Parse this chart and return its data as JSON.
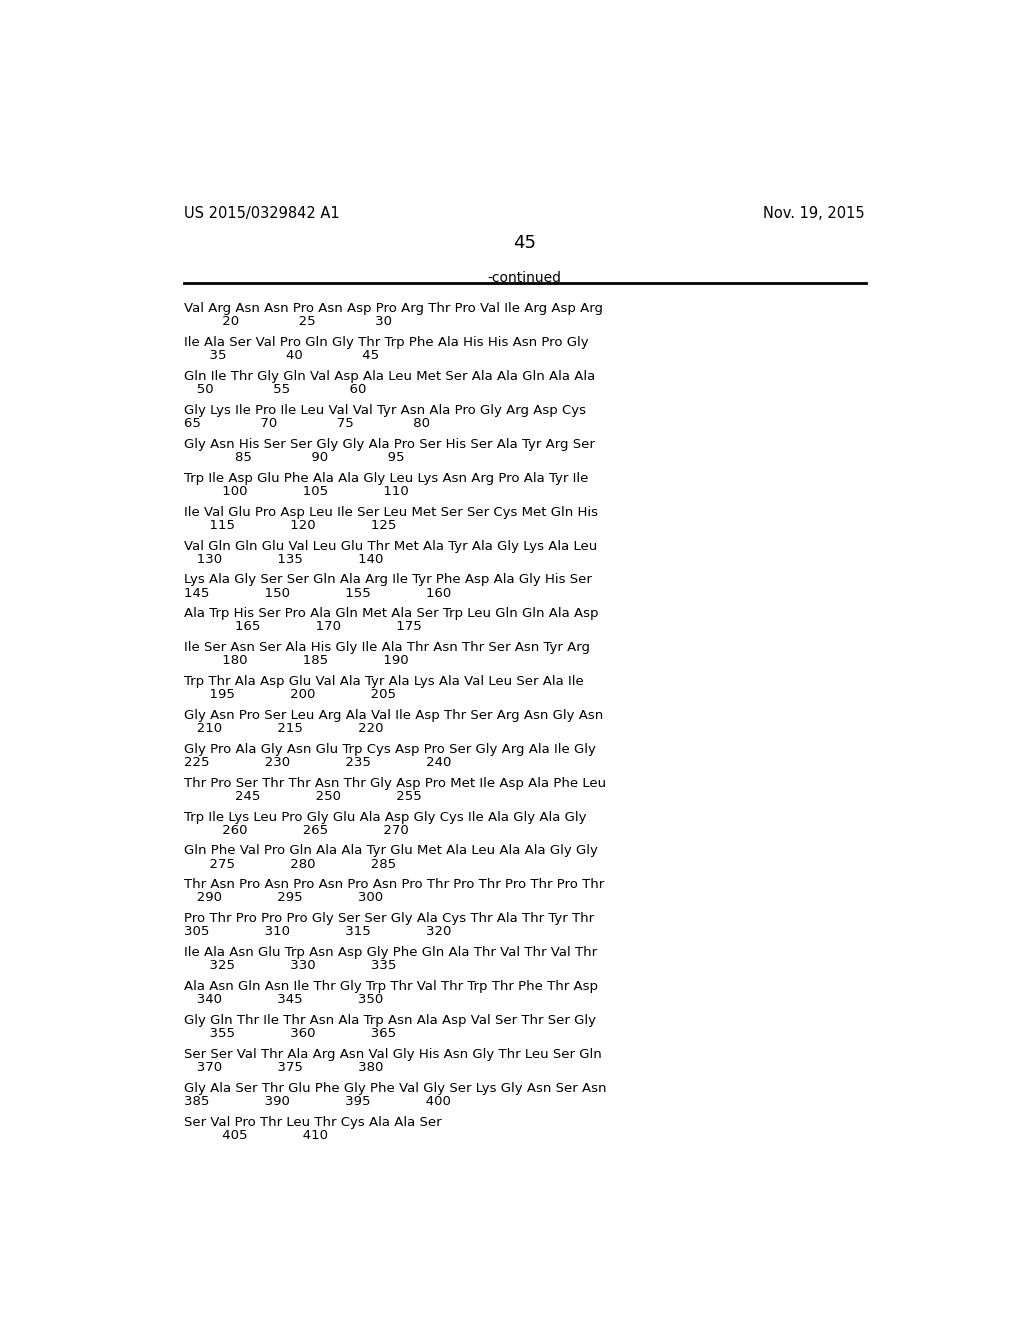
{
  "header_left": "US 2015/0329842 A1",
  "header_right": "Nov. 19, 2015",
  "page_number": "45",
  "continued_text": "-continued",
  "background_color": "#ffffff",
  "text_color": "#000000",
  "sequence_groups": [
    {
      "seq": "Val Arg Asn Asn Pro Asn Asp Pro Arg Thr Pro Val Ile Arg Asp Arg",
      "num": "         20              25              30"
    },
    {
      "seq": "Ile Ala Ser Val Pro Gln Gly Thr Trp Phe Ala His His Asn Pro Gly",
      "num": "      35              40              45"
    },
    {
      "seq": "Gln Ile Thr Gly Gln Val Asp Ala Leu Met Ser Ala Ala Gln Ala Ala",
      "num": "   50              55              60"
    },
    {
      "seq": "Gly Lys Ile Pro Ile Leu Val Val Tyr Asn Ala Pro Gly Arg Asp Cys",
      "num": "65              70              75              80"
    },
    {
      "seq": "Gly Asn His Ser Ser Gly Gly Ala Pro Ser His Ser Ala Tyr Arg Ser",
      "num": "            85              90              95"
    },
    {
      "seq": "Trp Ile Asp Glu Phe Ala Ala Gly Leu Lys Asn Arg Pro Ala Tyr Ile",
      "num": "         100             105             110"
    },
    {
      "seq": "Ile Val Glu Pro Asp Leu Ile Ser Leu Met Ser Ser Cys Met Gln His",
      "num": "      115             120             125"
    },
    {
      "seq": "Val Gln Gln Glu Val Leu Glu Thr Met Ala Tyr Ala Gly Lys Ala Leu",
      "num": "   130             135             140"
    },
    {
      "seq": "Lys Ala Gly Ser Ser Gln Ala Arg Ile Tyr Phe Asp Ala Gly His Ser",
      "num": "145             150             155             160"
    },
    {
      "seq": "Ala Trp His Ser Pro Ala Gln Met Ala Ser Trp Leu Gln Gln Ala Asp",
      "num": "            165             170             175"
    },
    {
      "seq": "Ile Ser Asn Ser Ala His Gly Ile Ala Thr Asn Thr Ser Asn Tyr Arg",
      "num": "         180             185             190"
    },
    {
      "seq": "Trp Thr Ala Asp Glu Val Ala Tyr Ala Lys Ala Val Leu Ser Ala Ile",
      "num": "      195             200             205"
    },
    {
      "seq": "Gly Asn Pro Ser Leu Arg Ala Val Ile Asp Thr Ser Arg Asn Gly Asn",
      "num": "   210             215             220"
    },
    {
      "seq": "Gly Pro Ala Gly Asn Glu Trp Cys Asp Pro Ser Gly Arg Ala Ile Gly",
      "num": "225             230             235             240"
    },
    {
      "seq": "Thr Pro Ser Thr Thr Asn Thr Gly Asp Pro Met Ile Asp Ala Phe Leu",
      "num": "            245             250             255"
    },
    {
      "seq": "Trp Ile Lys Leu Pro Gly Glu Ala Asp Gly Cys Ile Ala Gly Ala Gly",
      "num": "         260             265             270"
    },
    {
      "seq": "Gln Phe Val Pro Gln Ala Ala Tyr Glu Met Ala Leu Ala Ala Gly Gly",
      "num": "      275             280             285"
    },
    {
      "seq": "Thr Asn Pro Asn Pro Asn Pro Asn Pro Thr Pro Thr Pro Thr Pro Thr",
      "num": "   290             295             300"
    },
    {
      "seq": "Pro Thr Pro Pro Pro Gly Ser Ser Gly Ala Cys Thr Ala Thr Tyr Thr",
      "num": "305             310             315             320"
    },
    {
      "seq": "Ile Ala Asn Glu Trp Asn Asp Gly Phe Gln Ala Thr Val Thr Val Thr",
      "num": "      325             330             335"
    },
    {
      "seq": "Ala Asn Gln Asn Ile Thr Gly Trp Thr Val Thr Trp Thr Phe Thr Asp",
      "num": "   340             345             350"
    },
    {
      "seq": "Gly Gln Thr Ile Thr Asn Ala Trp Asn Ala Asp Val Ser Thr Ser Gly",
      "num": "      355             360             365"
    },
    {
      "seq": "Ser Ser Val Thr Ala Arg Asn Val Gly His Asn Gly Thr Leu Ser Gln",
      "num": "   370             375             380"
    },
    {
      "seq": "Gly Ala Ser Thr Glu Phe Gly Phe Val Gly Ser Lys Gly Asn Ser Asn",
      "num": "385             390             395             400"
    },
    {
      "seq": "Ser Val Pro Thr Leu Thr Cys Ala Ala Ser",
      "num": "         405             410"
    }
  ]
}
